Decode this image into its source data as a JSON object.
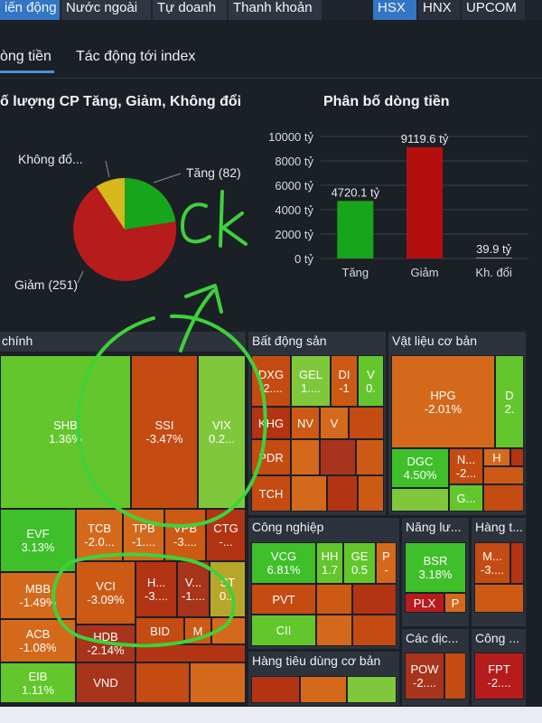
{
  "top_tabs": [
    "iến động",
    "Nước ngoài",
    "Tự doanh",
    "Thanh khoản"
  ],
  "exchanges": [
    "HSX",
    "HNX",
    "UPCOM"
  ],
  "sub_tabs": [
    "òng tiền",
    "Tác động tới index"
  ],
  "pie": {
    "title": "ố lượng CP Tăng, Giảm, Không đổi",
    "labels": {
      "tang": "Tăng (82)",
      "giam": "Giảm (251)",
      "kd": "Không đổ..."
    }
  },
  "chart_data": {
    "type": "bar",
    "title": "Phân bố dòng tiền",
    "categories": [
      "Tăng",
      "Giảm",
      "Kh. đổi"
    ],
    "values": [
      4720.1,
      9119.6,
      39.9
    ],
    "value_labels": [
      "4720.1 tỷ",
      "9119.6 tỷ",
      "39.9 tỷ"
    ],
    "y_ticks": [
      "0 tỷ",
      "2000 tỷ",
      "4000 tỷ",
      "6000 tỷ",
      "8000 tỷ",
      "10000 tỷ"
    ],
    "ylim": [
      0,
      10000
    ],
    "colors": [
      "#16a51b",
      "#b30f0f",
      "#8c8c8c"
    ]
  },
  "sectors": {
    "tai_chinh": "chính",
    "bds": "Bất động sản",
    "vlcb": "Vật liệu cơ bản",
    "cong_nghiep": "Công nghiệp",
    "nang_luong": "Năng lư...",
    "hang_t": "Hàng t...",
    "htd": "Hàng tiêu dùng cơ bản",
    "cac_dich": "Các dịc...",
    "cong": "Công ..."
  },
  "cells": {
    "shb": [
      "SHB",
      "1.36%"
    ],
    "ssi": [
      "SSI",
      "-3.47%"
    ],
    "vix": [
      "VIX",
      "0.2..."
    ],
    "evf": [
      "EVF",
      "3.13%"
    ],
    "tcb": [
      "TCB",
      "-2.0..."
    ],
    "tpb": [
      "TPB",
      "-1...."
    ],
    "vpb": [
      "VPB",
      "-3...."
    ],
    "ctg": [
      "CTG",
      "-..."
    ],
    "mbb": [
      "MBB",
      "-1.49%"
    ],
    "vci": [
      "VCI",
      "-3.09%"
    ],
    "h": [
      "H...",
      "-3...."
    ],
    "v": [
      "V...",
      "-1...."
    ],
    "st": [
      "ST",
      "0..."
    ],
    "acb": [
      "ACB",
      "-1.08%"
    ],
    "hdb": [
      "HDB",
      "-2.14%"
    ],
    "bid": [
      "BID"
    ],
    "m": [
      "M"
    ],
    "eib": [
      "EIB",
      "1.11%"
    ],
    "vnd": [
      "VND"
    ],
    "dxg": [
      "DXG",
      "-2...."
    ],
    "gel": [
      "GEL",
      "1...."
    ],
    "di": [
      "DI",
      "-1"
    ],
    "v0": [
      "V",
      "0."
    ],
    "khg": [
      "KHG"
    ],
    "nv": [
      "NV"
    ],
    "vb": [
      "V"
    ],
    "pdr": [
      "PDR"
    ],
    "tch": [
      "TCH"
    ],
    "hpg": [
      "HPG",
      "-2.01%"
    ],
    "d2": [
      "D",
      "2."
    ],
    "dgc": [
      "DGC",
      "4.50%"
    ],
    "n2": [
      "N...",
      "-2..."
    ],
    "hx": [
      "H"
    ],
    "gdot": [
      "G..."
    ],
    "vcg": [
      "VCG",
      "6.81%"
    ],
    "hh": [
      "HH",
      "1.7"
    ],
    "ge": [
      "GE",
      "0.5"
    ],
    "p1": [
      "P",
      "-"
    ],
    "pvt": [
      "PVT"
    ],
    "cii": [
      "CII"
    ],
    "bsr": [
      "BSR",
      "3.18%"
    ],
    "plx": [
      "PLX"
    ],
    "p2": [
      "P"
    ],
    "mdot": [
      "M...",
      "-3...."
    ],
    "pow": [
      "POW",
      "-2...."
    ],
    "fpt": [
      "FPT",
      "-2...."
    ]
  },
  "annotation": "Ck"
}
